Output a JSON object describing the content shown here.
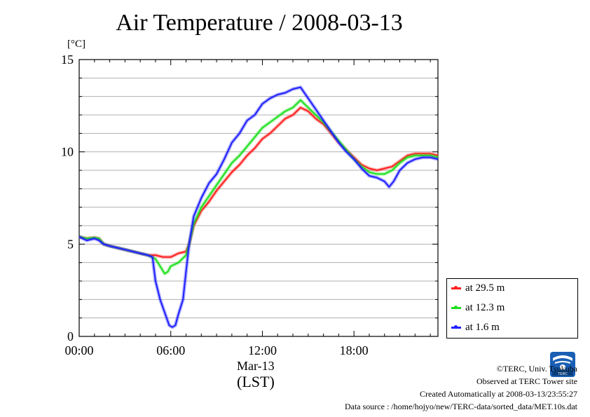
{
  "chart_data": {
    "type": "line",
    "title": "Air Temperature / 2008-03-13",
    "unit_label": "[°C]",
    "xlabel": "(LST)",
    "date_label": "Mar-13",
    "xlim": [
      0,
      23.5
    ],
    "ylim": [
      0,
      15
    ],
    "x_ticks": [
      {
        "value": 0,
        "label": "00:00"
      },
      {
        "value": 6,
        "label": "06:00"
      },
      {
        "value": 12,
        "label": "12:00"
      },
      {
        "value": 18,
        "label": "18:00"
      }
    ],
    "y_ticks": [
      {
        "value": 0,
        "label": "0"
      },
      {
        "value": 5,
        "label": "5"
      },
      {
        "value": 10,
        "label": "10"
      },
      {
        "value": 15,
        "label": "15"
      }
    ],
    "grid": true,
    "legend_position": "bottom-right",
    "series": [
      {
        "name": "at 29.5 m",
        "color": "#ff2020",
        "x": [
          0,
          0.5,
          1,
          1.3,
          1.6,
          2,
          3,
          4,
          4.5,
          5,
          5.5,
          6,
          6.5,
          7,
          7.2,
          7.5,
          8,
          8.5,
          9,
          9.5,
          10,
          10.5,
          11,
          11.5,
          12,
          12.5,
          13,
          13.5,
          14,
          14.5,
          15,
          15.5,
          16,
          16.5,
          17,
          17.5,
          18,
          18.5,
          19,
          19.5,
          20,
          20.5,
          21,
          21.5,
          22,
          22.5,
          23,
          23.5
        ],
        "y": [
          5.4,
          5.3,
          5.35,
          5.3,
          5.0,
          4.9,
          4.7,
          4.5,
          4.4,
          4.4,
          4.3,
          4.3,
          4.5,
          4.6,
          5.0,
          6.0,
          6.8,
          7.3,
          7.9,
          8.4,
          8.9,
          9.3,
          9.8,
          10.2,
          10.7,
          11.0,
          11.4,
          11.8,
          12.0,
          12.4,
          12.2,
          11.8,
          11.5,
          11.0,
          10.5,
          10.1,
          9.7,
          9.3,
          9.1,
          9.0,
          9.1,
          9.2,
          9.5,
          9.8,
          9.9,
          9.9,
          9.9,
          9.8
        ]
      },
      {
        "name": "at 12.3 m",
        "color": "#20e020",
        "x": [
          0,
          0.5,
          1,
          1.3,
          1.6,
          2,
          3,
          4,
          4.5,
          5,
          5.3,
          5.6,
          5.8,
          6,
          6.5,
          7,
          7.2,
          7.5,
          8,
          8.5,
          9,
          9.5,
          10,
          10.5,
          11,
          11.5,
          12,
          12.5,
          13,
          13.5,
          14,
          14.5,
          15,
          15.5,
          16,
          16.5,
          17,
          17.5,
          18,
          18.5,
          19,
          19.5,
          20,
          20.5,
          21,
          21.5,
          22,
          22.5,
          23,
          23.5
        ],
        "y": [
          5.4,
          5.3,
          5.35,
          5.3,
          5.0,
          4.9,
          4.7,
          4.5,
          4.4,
          4.2,
          3.8,
          3.4,
          3.5,
          3.8,
          4.0,
          4.4,
          5.0,
          6.1,
          7.0,
          7.6,
          8.2,
          8.8,
          9.4,
          9.8,
          10.3,
          10.8,
          11.3,
          11.6,
          11.9,
          12.2,
          12.4,
          12.8,
          12.4,
          12.0,
          11.6,
          11.1,
          10.6,
          10.1,
          9.6,
          9.2,
          8.9,
          8.8,
          8.8,
          9.0,
          9.4,
          9.7,
          9.8,
          9.8,
          9.8,
          9.7
        ]
      },
      {
        "name": "at 1.6 m",
        "color": "#2020ff",
        "x": [
          0,
          0.5,
          1,
          1.3,
          1.6,
          2,
          3,
          4,
          4.5,
          4.8,
          5.0,
          5.3,
          5.6,
          5.9,
          6.1,
          6.3,
          6.5,
          6.8,
          7.0,
          7.2,
          7.5,
          8,
          8.5,
          9,
          9.5,
          10,
          10.5,
          11,
          11.5,
          12,
          12.5,
          13,
          13.5,
          14,
          14.5,
          15,
          15.5,
          16,
          16.5,
          17,
          17.5,
          18,
          18.5,
          19,
          19.5,
          20,
          20.3,
          20.6,
          21,
          21.5,
          22,
          22.5,
          23,
          23.5
        ],
        "y": [
          5.4,
          5.2,
          5.3,
          5.2,
          5.0,
          4.9,
          4.7,
          4.5,
          4.4,
          4.3,
          3.0,
          2.0,
          1.3,
          0.6,
          0.5,
          0.6,
          1.2,
          2.0,
          3.5,
          5.0,
          6.5,
          7.5,
          8.3,
          8.8,
          9.6,
          10.5,
          11.0,
          11.7,
          12.0,
          12.6,
          12.9,
          13.1,
          13.2,
          13.4,
          13.5,
          12.9,
          12.3,
          11.7,
          11.1,
          10.5,
          10.0,
          9.6,
          9.1,
          8.7,
          8.6,
          8.4,
          8.1,
          8.4,
          9.0,
          9.4,
          9.6,
          9.7,
          9.7,
          9.6
        ]
      }
    ]
  },
  "footer": {
    "copyright": "©TERC, Univ. Tsukuba",
    "observed": "Observed at TERC Tower site",
    "created": "Created Automatically at 2008-03-13/23:55:27",
    "source": "Data source : /home/hojyo/new/TERC-data/sorted_data/MET.10s.dat"
  },
  "logo_text": "TERC"
}
